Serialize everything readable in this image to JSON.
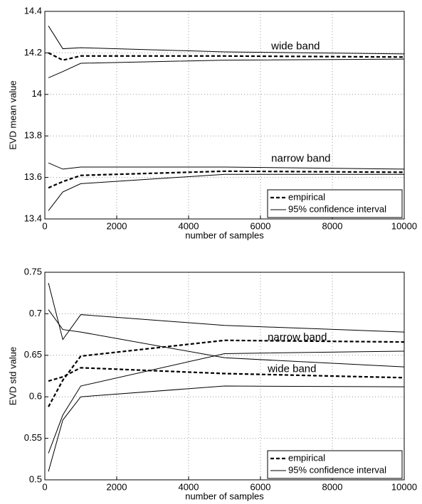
{
  "chart_data": [
    {
      "type": "line",
      "x_label": "number of samples",
      "y_label": "EVD mean value",
      "x": [
        100,
        500,
        1000,
        5000,
        10000
      ],
      "xlim": [
        0,
        10000
      ],
      "xticks": [
        0,
        2000,
        4000,
        6000,
        8000,
        10000
      ],
      "ylim": [
        13.4,
        14.4
      ],
      "yticks": [
        13.4,
        13.6,
        13.8,
        14,
        14.2,
        14.4
      ],
      "grid": true,
      "legend": [
        {
          "label": "empirical",
          "dashed": true
        },
        {
          "label": "95% confidence interval",
          "dashed": false
        }
      ],
      "legend_position": "lower right",
      "series": [
        {
          "dashed": true,
          "values": [
            14.2,
            14.165,
            14.185,
            14.185,
            14.18
          ]
        },
        {
          "dashed": false,
          "values": [
            14.33,
            14.22,
            14.225,
            14.205,
            14.195
          ]
        },
        {
          "dashed": false,
          "values": [
            14.08,
            14.11,
            14.15,
            14.165,
            14.17
          ]
        },
        {
          "dashed": true,
          "values": [
            13.55,
            13.58,
            13.61,
            13.63,
            13.625
          ]
        },
        {
          "dashed": false,
          "values": [
            13.67,
            13.64,
            13.65,
            13.65,
            13.64
          ]
        },
        {
          "dashed": false,
          "values": [
            13.44,
            13.53,
            13.57,
            13.615,
            13.615
          ]
        }
      ],
      "annotations": [
        {
          "text": "wide band",
          "x": 6300,
          "y": 14.23
        },
        {
          "text": "narrow band",
          "x": 6300,
          "y": 13.69
        }
      ]
    },
    {
      "type": "line",
      "x_label": "number of samples",
      "y_label": "EVD std value",
      "x": [
        100,
        500,
        1000,
        5000,
        10000
      ],
      "xlim": [
        0,
        10000
      ],
      "xticks": [
        0,
        2000,
        4000,
        6000,
        8000,
        10000
      ],
      "ylim": [
        0.5,
        0.75
      ],
      "yticks": [
        0.5,
        0.55,
        0.6,
        0.65,
        0.7,
        0.75
      ],
      "grid": true,
      "legend": [
        {
          "label": "empirical",
          "dashed": true
        },
        {
          "label": "95% confidence interval",
          "dashed": false
        }
      ],
      "legend_position": "lower right",
      "series": [
        {
          "dashed": true,
          "values": [
            0.588,
            0.62,
            0.649,
            0.668,
            0.666
          ]
        },
        {
          "dashed": false,
          "values": [
            0.705,
            0.681,
            0.678,
            0.647,
            0.636
          ]
        },
        {
          "dashed": false,
          "values": [
            0.532,
            0.578,
            0.613,
            0.652,
            0.655
          ]
        },
        {
          "dashed": true,
          "values": [
            0.619,
            0.624,
            0.635,
            0.628,
            0.623
          ]
        },
        {
          "dashed": false,
          "values": [
            0.737,
            0.669,
            0.699,
            0.686,
            0.678
          ]
        },
        {
          "dashed": false,
          "values": [
            0.51,
            0.572,
            0.6,
            0.613,
            0.612
          ]
        }
      ],
      "annotations": [
        {
          "text": "narrow band",
          "x": 6200,
          "y": 0.671
        },
        {
          "text": "wide band",
          "x": 6200,
          "y": 0.633
        }
      ]
    }
  ]
}
